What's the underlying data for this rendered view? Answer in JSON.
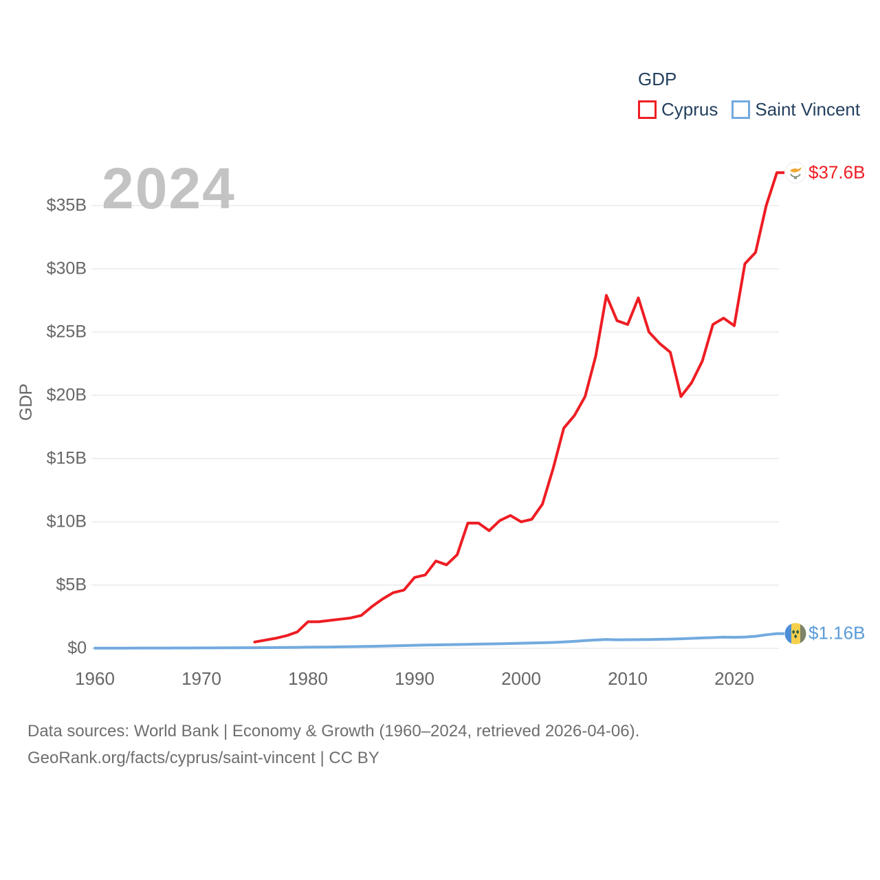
{
  "legend": {
    "title": "GDP",
    "items": [
      {
        "label": "Cyprus",
        "color": "#ee1d23"
      },
      {
        "label": "Saint Vincent",
        "color": "#72aadf"
      }
    ]
  },
  "watermark": "2024",
  "end_labels": [
    {
      "text": "$37.6B",
      "color": "#ee1d23"
    },
    {
      "text": "$1.16B",
      "color": "#5b9bd8"
    }
  ],
  "footer": {
    "line1": "Data sources: World Bank | Economy & Growth (1960–2024, retrieved 2026-04-06).",
    "line2": "GeoRank.org/facts/cyprus/saint-vincent | CC BY"
  },
  "chart_data": {
    "type": "line",
    "title": "GDP",
    "xlabel": "",
    "ylabel": "GDP",
    "grid": true,
    "legend_position": "top-right",
    "xlim": [
      1957,
      2027
    ],
    "ylim": [
      0,
      38.5
    ],
    "x_ticks": [
      1960,
      1970,
      1980,
      1990,
      2000,
      2010,
      2020
    ],
    "y_ticks": [
      {
        "value": 0,
        "label": "$0"
      },
      {
        "value": 5,
        "label": "$5B"
      },
      {
        "value": 10,
        "label": "$10B"
      },
      {
        "value": 15,
        "label": "$15B"
      },
      {
        "value": 20,
        "label": "$20B"
      },
      {
        "value": 25,
        "label": "$25B"
      },
      {
        "value": 30,
        "label": "$30B"
      },
      {
        "value": 35,
        "label": "$35B"
      }
    ],
    "series": [
      {
        "name": "Cyprus",
        "color": "#ee1d23",
        "flag": "cyprus-flag-icon",
        "end_label": "$37.6B",
        "start_year": 1975,
        "values": [
          0.5,
          0.65,
          0.8,
          1.0,
          1.3,
          2.1,
          2.1,
          2.2,
          2.3,
          2.4,
          2.6,
          3.3,
          3.9,
          4.4,
          4.6,
          5.6,
          5.8,
          6.9,
          6.6,
          7.4,
          9.9,
          9.9,
          9.3,
          10.1,
          10.5,
          10.0,
          10.2,
          11.4,
          14.2,
          17.4,
          18.4,
          19.9,
          23.1,
          27.9,
          25.9,
          25.6,
          27.7,
          25.0,
          24.1,
          23.4,
          19.9,
          21.0,
          22.7,
          25.6,
          26.1,
          25.5,
          30.4,
          31.3,
          35.0,
          37.6
        ]
      },
      {
        "name": "Saint Vincent",
        "color": "#72aadf",
        "flag": "saint-vincent-flag-icon",
        "end_label": "$1.16B",
        "start_year": 1960,
        "values": [
          0.013,
          0.014,
          0.015,
          0.016,
          0.017,
          0.019,
          0.021,
          0.023,
          0.025,
          0.028,
          0.031,
          0.034,
          0.038,
          0.042,
          0.046,
          0.05,
          0.055,
          0.062,
          0.07,
          0.078,
          0.085,
          0.095,
          0.105,
          0.115,
          0.128,
          0.14,
          0.155,
          0.175,
          0.195,
          0.215,
          0.24,
          0.255,
          0.27,
          0.285,
          0.3,
          0.315,
          0.33,
          0.345,
          0.36,
          0.38,
          0.4,
          0.42,
          0.44,
          0.465,
          0.5,
          0.55,
          0.61,
          0.66,
          0.7,
          0.675,
          0.68,
          0.685,
          0.69,
          0.71,
          0.73,
          0.755,
          0.79,
          0.82,
          0.85,
          0.88,
          0.87,
          0.89,
          0.95,
          1.07,
          1.16
        ]
      }
    ]
  }
}
